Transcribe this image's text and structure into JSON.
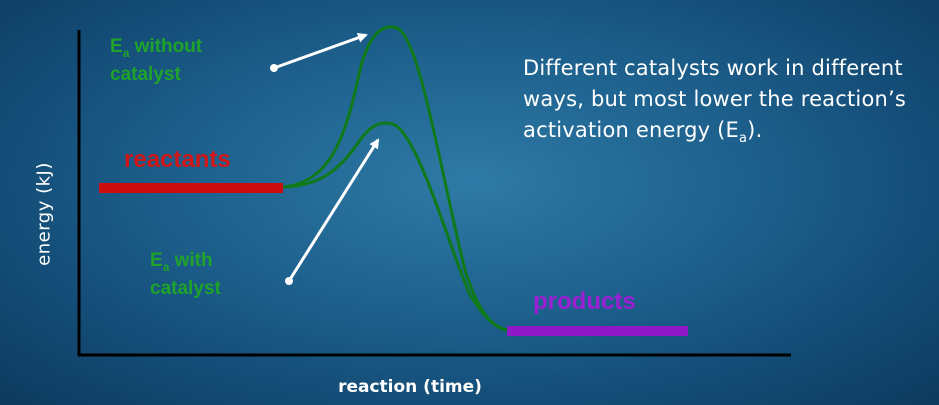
{
  "axes": {
    "y_label": "energy (kJ)",
    "x_label": "reaction (time)"
  },
  "labels": {
    "reactants": "reactants",
    "products": "products",
    "without_catalyst": {
      "e": "E",
      "sub": "a",
      "rest": " without",
      "line2": "catalyst"
    },
    "with_catalyst": {
      "e": "E",
      "sub": "a",
      "rest": " with",
      "line2": "catalyst"
    }
  },
  "note": {
    "text": "Different catalysts work in different ways, but most lower the reaction’s activation energy (E",
    "sub": "a",
    "end": ")."
  },
  "colors": {
    "background": "#1f6390",
    "curve": "#0f7a1a",
    "label_green": "#1fa32a",
    "reactants": "#d01616",
    "products": "#9b1fd3",
    "axis": "#000000",
    "arrow": "#ffffff"
  }
}
